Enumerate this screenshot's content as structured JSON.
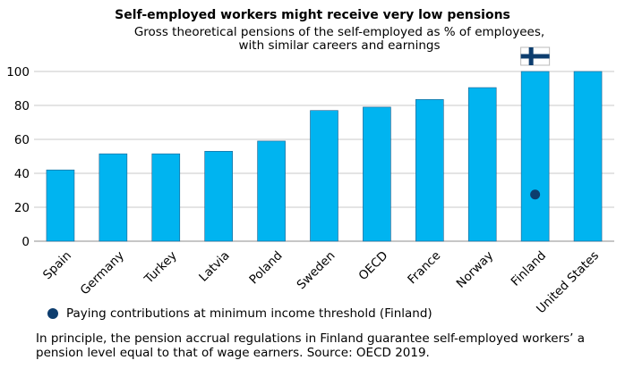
{
  "chart_data": {
    "type": "bar",
    "title": "Self-employed workers might receive very low pensions",
    "subtitle_lines": [
      "Gross theoretical pensions of the self-employed as % of employees,",
      "with similar careers and earnings"
    ],
    "categories": [
      "Spain",
      "Germany",
      "Turkey",
      "Latvia",
      "Poland",
      "Sweden",
      "OECD",
      "France",
      "Norway",
      "Finland",
      "United States"
    ],
    "series": [
      {
        "values": [
          42,
          51.5,
          51.5,
          53,
          59,
          77,
          79,
          83.5,
          90.5,
          100,
          100
        ],
        "color": "#00b4f0"
      },
      {
        "name": "Paying contributions at minimum income threshold (Finland)",
        "type": "scatter",
        "points": [
          {
            "category": "Finland",
            "value": 27.5
          }
        ],
        "color": "#0d3d6e"
      }
    ],
    "ylim": [
      0,
      100
    ],
    "yticks": [
      0,
      20,
      40,
      60,
      80,
      100
    ],
    "grid": true,
    "legend_position": "bottom-left",
    "xlabel": "",
    "ylabel": "",
    "annotation_icon": "finland-flag-icon",
    "annotation_category": "Finland"
  },
  "note": "In principle, the pension accrual regulations in Finland guarantee self-employed workers’ a pension level equal to that of wage earners. Source: OECD 2019."
}
